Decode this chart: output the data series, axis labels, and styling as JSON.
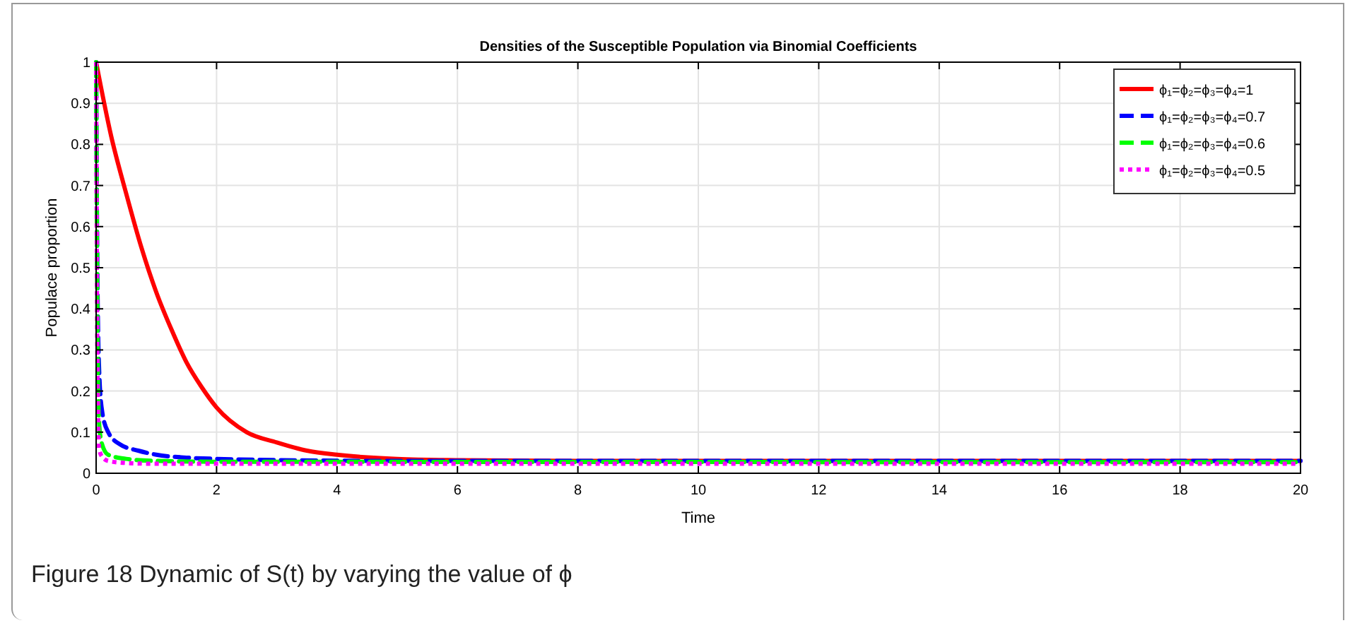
{
  "chart_data": {
    "type": "line",
    "title": "Densities of the Susceptible Population via Binomial Coefficients",
    "xlabel": "Time",
    "ylabel": "Populace proportion",
    "annotations": [
      "Figure 18  Dynamic of S(t) by varying the value of ϕ"
    ],
    "xlim": [
      0,
      20
    ],
    "xticks": [
      0,
      2,
      4,
      6,
      8,
      10,
      12,
      14,
      16,
      18,
      20
    ],
    "ylim": [
      0,
      1
    ],
    "yticks": [
      0,
      0.1,
      0.2,
      0.3,
      0.4,
      0.5,
      0.6,
      0.7,
      0.8,
      0.9,
      1
    ],
    "grid": true,
    "legend": "top right",
    "series": [
      {
        "name": "ϕ₁=ϕ₂=ϕ₃=ϕ₄=1",
        "color": "#ff0000",
        "line_style": "solid",
        "x": [
          0,
          0.25,
          0.5,
          0.75,
          1,
          1.25,
          1.5,
          1.75,
          2,
          2.5,
          3,
          3.5,
          4,
          5,
          6,
          8,
          20
        ],
        "values": [
          1,
          0.82,
          0.68,
          0.55,
          0.44,
          0.35,
          0.27,
          0.21,
          0.16,
          0.1,
          0.075,
          0.055,
          0.045,
          0.035,
          0.032,
          0.03,
          0.03
        ]
      },
      {
        "name": "ϕ₁=ϕ₂=ϕ₃=ϕ₄=0.7",
        "color": "#0000ff",
        "line_style": "dashed",
        "x": [
          0,
          0.02,
          0.05,
          0.1,
          0.2,
          0.4,
          0.7,
          1,
          1.5,
          2,
          3,
          5,
          20
        ],
        "values": [
          1,
          0.5,
          0.25,
          0.15,
          0.1,
          0.07,
          0.055,
          0.045,
          0.038,
          0.035,
          0.032,
          0.03,
          0.03
        ]
      },
      {
        "name": "ϕ₁=ϕ₂=ϕ₃=ϕ₄=0.6",
        "color": "#00ff00",
        "line_style": "dashed",
        "x": [
          0,
          0.02,
          0.05,
          0.1,
          0.2,
          0.5,
          1,
          2,
          20
        ],
        "values": [
          1,
          0.4,
          0.12,
          0.07,
          0.045,
          0.035,
          0.03,
          0.028,
          0.027
        ]
      },
      {
        "name": "ϕ₁=ϕ₂=ϕ₃=ϕ₄=0.5",
        "color": "#ff00ff",
        "line_style": "dotted",
        "x": [
          0,
          0.02,
          0.05,
          0.1,
          0.2,
          0.5,
          1,
          20
        ],
        "values": [
          1,
          0.3,
          0.06,
          0.04,
          0.03,
          0.025,
          0.023,
          0.023
        ]
      }
    ]
  }
}
